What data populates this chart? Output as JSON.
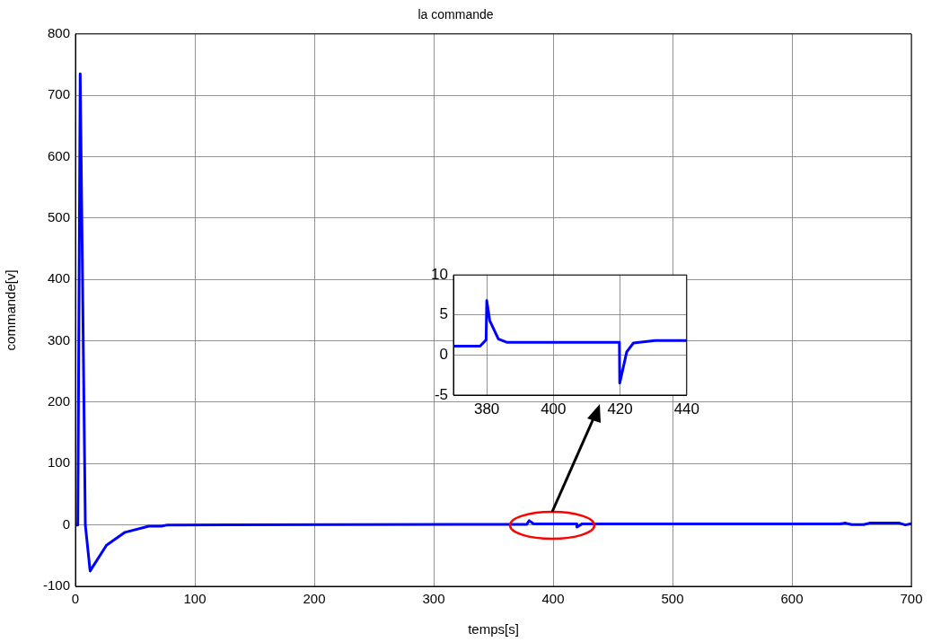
{
  "chart_data": [
    {
      "type": "line",
      "title": "la commande",
      "xlabel": "temps[s]",
      "ylabel": "commande[v]",
      "x": [
        0,
        2,
        4,
        8.3,
        12.3,
        26,
        41.5,
        61.5,
        72,
        77,
        378,
        380,
        383.5,
        386,
        419.8,
        420,
        424,
        430,
        640,
        645,
        650,
        660,
        665,
        690,
        695,
        700
      ],
      "series": [
        {
          "color": "#0000ff",
          "values": [
            0,
            0,
            735,
            0,
            -75,
            -33,
            -12,
            -2,
            -2,
            0,
            1.1,
            7,
            2,
            1.6,
            1.6,
            -3.5,
            1.5,
            1.8,
            1.8,
            3,
            0.5,
            0.5,
            3,
            3,
            0,
            2
          ]
        }
      ],
      "xlim": [
        0,
        700
      ],
      "ylim": [
        -100,
        800
      ],
      "xticks": [
        0,
        100,
        200,
        300,
        400,
        500,
        600,
        700
      ],
      "yticks": [
        -100,
        0,
        100,
        200,
        300,
        400,
        500,
        600,
        700,
        800
      ],
      "grid": true
    },
    {
      "type": "line",
      "x": [
        370,
        378,
        379.8,
        380,
        380.9,
        383.5,
        386,
        419.8,
        419.9,
        422,
        424,
        430.5,
        440
      ],
      "series": [
        {
          "color": "#0000ff",
          "values": [
            1.1,
            1.1,
            1.9,
            6.8,
            4.3,
            2,
            1.6,
            1.6,
            -3.5,
            0.4,
            1.5,
            1.8,
            1.8
          ]
        }
      ],
      "xlim": [
        370,
        440
      ],
      "ylim": [
        -5,
        10
      ],
      "xticks": [
        380,
        400,
        420,
        440
      ],
      "yticks": [
        -5,
        0,
        5,
        10
      ],
      "grid": true
    }
  ]
}
